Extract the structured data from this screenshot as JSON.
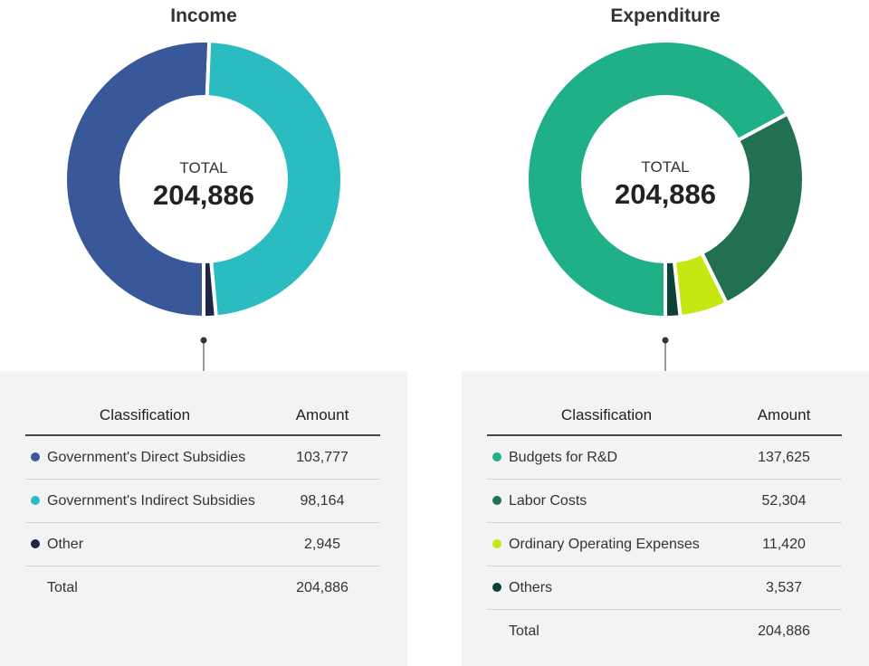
{
  "chart_data": [
    {
      "type": "pie",
      "title": "Income",
      "center_label": "TOTAL",
      "center_value": "204,886",
      "table_headers": {
        "classification": "Classification",
        "amount": "Amount"
      },
      "categories": [
        "Government's Direct Subsidies",
        "Government's Indirect Subsidies",
        "Other"
      ],
      "values": [
        103777,
        98164,
        2945
      ],
      "display_values": [
        "103,777",
        "98,164",
        "2,945"
      ],
      "colors": [
        "#38589a",
        "#2bbcc2",
        "#1f2545"
      ],
      "total_label": "Total",
      "total_value": "204,886"
    },
    {
      "type": "pie",
      "title": "Expenditure",
      "center_label": "TOTAL",
      "center_value": "204,886",
      "table_headers": {
        "classification": "Classification",
        "amount": "Amount"
      },
      "categories": [
        "Budgets for R&D",
        "Labor Costs",
        "Ordinary Operating Expenses",
        "Others"
      ],
      "values": [
        137625,
        52304,
        11420,
        3537
      ],
      "display_values": [
        "137,625",
        "52,304",
        "11,420",
        "3,537"
      ],
      "colors": [
        "#20b088",
        "#227052",
        "#c5e812",
        "#0f4236"
      ],
      "total_label": "Total",
      "total_value": "204,886"
    }
  ]
}
